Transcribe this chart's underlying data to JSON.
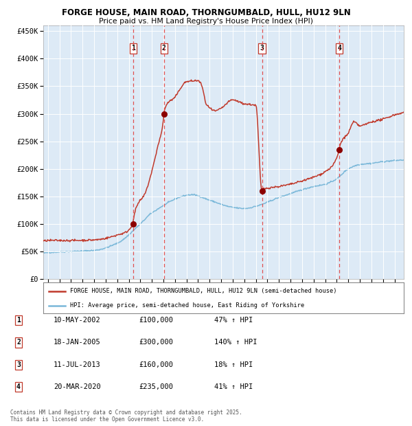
{
  "title": "FORGE HOUSE, MAIN ROAD, THORNGUMBALD, HULL, HU12 9LN",
  "subtitle": "Price paid vs. HM Land Registry's House Price Index (HPI)",
  "legend_line1": "FORGE HOUSE, MAIN ROAD, THORNGUMBALD, HULL, HU12 9LN (semi-detached house)",
  "legend_line2": "HPI: Average price, semi-detached house, East Riding of Yorkshire",
  "footer": "Contains HM Land Registry data © Crown copyright and database right 2025.\nThis data is licensed under the Open Government Licence v3.0.",
  "transactions": [
    {
      "num": 1,
      "date": "10-MAY-2002",
      "price": 100000,
      "hpi_pct": "47% ↑ HPI",
      "year": 2002.36
    },
    {
      "num": 2,
      "date": "18-JAN-2005",
      "price": 300000,
      "hpi_pct": "140% ↑ HPI",
      "year": 2005.05
    },
    {
      "num": 3,
      "date": "11-JUL-2013",
      "price": 160000,
      "hpi_pct": "18% ↑ HPI",
      "year": 2013.53
    },
    {
      "num": 4,
      "date": "20-MAR-2020",
      "price": 235000,
      "hpi_pct": "41% ↑ HPI",
      "year": 2020.22
    }
  ],
  "hpi_color": "#7ab8d9",
  "price_color": "#c0392b",
  "dot_color": "#8b0000",
  "vline_color": "#e05050",
  "plot_bg": "#ddeaf6",
  "grid_color": "#ffffff",
  "ylim": [
    0,
    460000
  ],
  "xlim_start": 1994.6,
  "xlim_end": 2025.8
}
